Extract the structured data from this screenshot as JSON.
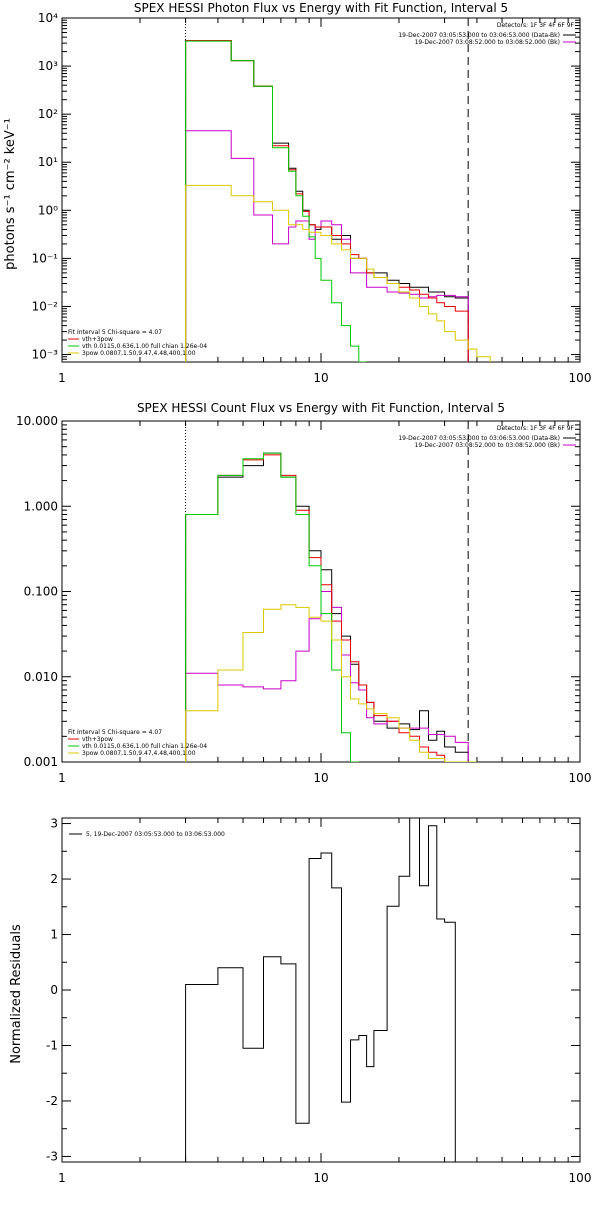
{
  "chart_data": [
    {
      "type": "line",
      "title": "SPEX HESSI Photon Flux vs Energy with Fit Function, Interval 5",
      "ylabel": "photons s⁻¹ cm⁻² keV⁻¹",
      "xlabel": "",
      "xscale": "log",
      "yscale": "log",
      "xlim": [
        1,
        100
      ],
      "ylim": [
        0.0007,
        10000
      ],
      "xticks": [
        {
          "v": 1,
          "label": "1"
        },
        {
          "v": 10,
          "label": "10"
        },
        {
          "v": 100,
          "label": "100"
        }
      ],
      "yticks": [
        {
          "v": 0.001,
          "label": "10⁻³"
        },
        {
          "v": 0.01,
          "label": "10⁻²"
        },
        {
          "v": 0.1,
          "label": "10⁻¹"
        },
        {
          "v": 1,
          "label": "10⁰"
        },
        {
          "v": 10,
          "label": "10¹"
        },
        {
          "v": 100,
          "label": "10²"
        },
        {
          "v": 1000,
          "label": "10³"
        },
        {
          "v": 10000,
          "label": "10⁴"
        }
      ],
      "vlines": [
        {
          "x": 3.0,
          "style": "dotted",
          "color": "#000000"
        },
        {
          "x": 37.0,
          "style": "dashed",
          "color": "#000000"
        }
      ],
      "detectors_text": "Detectors: 1F 3F 4F 6F 9F",
      "legend_top": [
        {
          "text": "19-Dec-2007 03:05:53.000 to 03:06:53.000 (Data-Bk)",
          "color": "#000000"
        },
        {
          "text": "19-Dec-2007 03:08:52.000 to 03:08:52.000 (Bk)",
          "color": "#c800c8"
        }
      ],
      "fit_text": "Fit Interval 5   Chi-square = 4.07",
      "legend_bottom": [
        {
          "text": "vth+3pow",
          "color": "#e60000"
        },
        {
          "text": "vth 0.0115,0.636,1.00  full chian 1.26e-04",
          "color": "#00c800"
        },
        {
          "text": "3pow 0.0807,1.50,9.47,4.48,400,1.00",
          "color": "#dcc800"
        }
      ],
      "x_edges": [
        3.0,
        3.5,
        4.0,
        4.5,
        5.0,
        5.5,
        6.0,
        6.5,
        7.0,
        7.5,
        8.0,
        8.5,
        9.0,
        9.5,
        10.0,
        11.0,
        12.0,
        13.0,
        14.0,
        15.0,
        16.0,
        18.0,
        20.0,
        22.0,
        24.0,
        26.0,
        28.0,
        30.0,
        33.0,
        37.0,
        40.0,
        45.0
      ],
      "series": [
        {
          "color": "#000000",
          "values": [
            3400,
            3400,
            3400,
            1300,
            1300,
            380,
            380,
            25,
            25,
            7.5,
            2.5,
            1.0,
            0.5,
            0.4,
            0.45,
            0.25,
            0.3,
            0.1,
            0.1,
            0.05,
            0.05,
            0.035,
            0.03,
            0.025,
            0.025,
            0.02,
            0.02,
            0.016,
            0.015,
            null,
            null
          ]
        },
        {
          "color": "#c800c8",
          "values": [
            45,
            45,
            45,
            12,
            12,
            0.8,
            0.8,
            0.2,
            0.2,
            0.45,
            0.6,
            0.6,
            0.25,
            0.45,
            0.6,
            0.5,
            0.25,
            0.05,
            0.05,
            0.025,
            0.025,
            0.02,
            0.019,
            0.018,
            0.015,
            0.016,
            0.017,
            0.017,
            0.016,
            null,
            null
          ]
        },
        {
          "color": "#e60000",
          "values": [
            3400,
            3400,
            3400,
            1300,
            1300,
            380,
            380,
            22,
            22,
            7.0,
            2.2,
            0.95,
            0.5,
            0.45,
            0.45,
            0.3,
            0.2,
            0.12,
            0.1,
            0.05,
            0.04,
            0.03,
            0.025,
            0.022,
            0.018,
            0.015,
            0.012,
            0.01,
            0.008,
            null,
            null
          ]
        },
        {
          "color": "#00c800",
          "values": [
            3300,
            3300,
            3300,
            1300,
            1300,
            380,
            380,
            20,
            20,
            6.5,
            2.0,
            0.75,
            0.28,
            0.1,
            0.035,
            0.012,
            0.004,
            0.0015,
            0.0007,
            null,
            null,
            null,
            null,
            null,
            null,
            null,
            null,
            null,
            null,
            null,
            null
          ]
        },
        {
          "color": "#dcc800",
          "values": [
            3.3,
            3.3,
            3.3,
            2.0,
            2.0,
            1.5,
            1.5,
            1.0,
            1.0,
            0.5,
            0.5,
            0.4,
            0.35,
            0.35,
            0.3,
            0.2,
            0.15,
            0.1,
            0.1,
            0.06,
            0.04,
            0.03,
            0.02,
            0.015,
            0.01,
            0.007,
            0.005,
            0.003,
            0.002,
            0.0013,
            0.0009
          ]
        }
      ]
    },
    {
      "type": "line",
      "title": "SPEX HESSI Count Flux vs Energy with Fit Function, Interval 5",
      "xlabel": "",
      "ylabel": "",
      "xscale": "log",
      "yscale": "log",
      "xlim": [
        1,
        100
      ],
      "ylim": [
        0.001,
        10
      ],
      "xticks": [
        {
          "v": 1,
          "label": "1"
        },
        {
          "v": 10,
          "label": "10"
        },
        {
          "v": 100,
          "label": "100"
        }
      ],
      "yticks": [
        {
          "v": 0.001,
          "label": "0.001"
        },
        {
          "v": 0.01,
          "label": "0.010"
        },
        {
          "v": 0.1,
          "label": "0.100"
        },
        {
          "v": 1,
          "label": "1.000"
        },
        {
          "v": 10,
          "label": "10.000"
        }
      ],
      "vlines": [
        {
          "x": 3.0,
          "style": "dotted",
          "color": "#000000"
        },
        {
          "x": 37.0,
          "style": "dashed",
          "color": "#000000"
        }
      ],
      "detectors_text": "Detectors: 1F 3F 4F 6F 9F",
      "legend_top": [
        {
          "text": "19-Dec-2007 03:05:53.000 to 03:06:53.000 (Data-Bk)",
          "color": "#000000"
        },
        {
          "text": "19-Dec-2007 03:08:52.000 to 03:08:52.000 (Bk)",
          "color": "#c800c8"
        }
      ],
      "fit_text": "Fit Interval 5   Chi-square = 4.07",
      "legend_bottom": [
        {
          "text": "vth+3pow",
          "color": "#e60000"
        },
        {
          "text": "vth 0.0115,0.636,1.00  full chian 1.26e-04",
          "color": "#00c800"
        },
        {
          "text": "3pow 0.0807,1.50,9.47,4.48,400,1.00",
          "color": "#dcc800"
        }
      ],
      "x_edges": [
        3.0,
        4.0,
        5.0,
        6.0,
        7.0,
        8.0,
        9.0,
        10.0,
        11.0,
        12.0,
        13.0,
        14.0,
        15.0,
        16.0,
        18.0,
        20.0,
        22.0,
        24.0,
        26.0,
        28.0,
        30.0,
        33.0,
        37.0,
        40.0
      ],
      "series": [
        {
          "color": "#000000",
          "values": [
            0.8,
            2.2,
            3.0,
            4.2,
            2.2,
            1.0,
            0.3,
            0.18,
            0.055,
            0.03,
            0.014,
            0.008,
            0.005,
            0.003,
            0.0025,
            0.0028,
            0.0024,
            0.004,
            0.0018,
            0.0023,
            0.0015,
            0.0013,
            null
          ]
        },
        {
          "color": "#c800c8",
          "values": [
            0.011,
            0.008,
            0.0076,
            0.0072,
            0.009,
            0.02,
            0.048,
            0.1,
            0.065,
            0.018,
            0.0085,
            0.007,
            0.0033,
            0.0028,
            0.003,
            0.0025,
            0.0025,
            0.0025,
            0.0021,
            0.0021,
            0.002,
            0.0017,
            null
          ]
        },
        {
          "color": "#e60000",
          "values": [
            0.8,
            2.3,
            3.5,
            4.0,
            2.3,
            0.9,
            0.25,
            0.12,
            0.045,
            0.027,
            0.015,
            0.008,
            0.005,
            0.0035,
            0.003,
            0.0022,
            0.002,
            0.0015,
            0.0013,
            0.0012,
            0.001,
            0.001,
            null
          ]
        },
        {
          "color": "#00c800",
          "values": [
            0.8,
            2.3,
            3.6,
            4.2,
            2.2,
            0.8,
            0.2,
            0.055,
            0.012,
            0.0022,
            0.0008,
            null,
            null,
            null,
            null,
            null,
            null,
            null,
            null,
            null,
            null,
            null,
            null
          ]
        },
        {
          "color": "#dcc800",
          "values": [
            0.004,
            0.012,
            0.033,
            0.062,
            0.07,
            0.065,
            0.05,
            0.045,
            0.027,
            0.01,
            0.0055,
            0.0048,
            0.0042,
            0.0037,
            0.0033,
            0.0025,
            0.0018,
            0.0013,
            0.0011,
            0.0011,
            0.0009,
            0.0008,
            0.0007
          ]
        }
      ]
    },
    {
      "type": "line",
      "title": "",
      "ylabel": "Normalized Residuals",
      "xlabel": "",
      "xscale": "log",
      "yscale": "linear",
      "xlim": [
        1,
        100
      ],
      "ylim": [
        -3.1,
        3.1
      ],
      "xticks": [
        {
          "v": 1,
          "label": "1"
        },
        {
          "v": 10,
          "label": "10"
        },
        {
          "v": 100,
          "label": "100"
        }
      ],
      "yticks": [
        {
          "v": -3,
          "label": "-3"
        },
        {
          "v": -2,
          "label": "-2"
        },
        {
          "v": -1,
          "label": "-1"
        },
        {
          "v": 0,
          "label": "0"
        },
        {
          "v": 1,
          "label": "1"
        },
        {
          "v": 2,
          "label": "2"
        },
        {
          "v": 3,
          "label": "3"
        }
      ],
      "vlines": [],
      "legend_top": [
        {
          "text": "5, 19-Dec-2007 03:05:53.000 to 03:06:53.000",
          "color": "#000000"
        }
      ],
      "x_edges": [
        3.0,
        4.0,
        5.0,
        6.0,
        7.0,
        8.0,
        9.0,
        10.0,
        11.0,
        12.0,
        13.0,
        14.0,
        15.0,
        16.0,
        18.0,
        20.0,
        22.0,
        24.0,
        26.0,
        28.0,
        30.0,
        33.0,
        37.0
      ],
      "series": [
        {
          "color": "#000000",
          "values": [
            0.1,
            0.4,
            -1.05,
            0.6,
            0.47,
            -2.4,
            2.37,
            2.47,
            1.84,
            -2.02,
            -0.9,
            -0.82,
            -1.38,
            -0.73,
            1.51,
            2.05,
            3.2,
            1.88,
            2.96,
            1.28,
            1.22,
            null
          ]
        }
      ],
      "start_drop_to": -3.1,
      "end_drop_to": -3.1
    }
  ]
}
